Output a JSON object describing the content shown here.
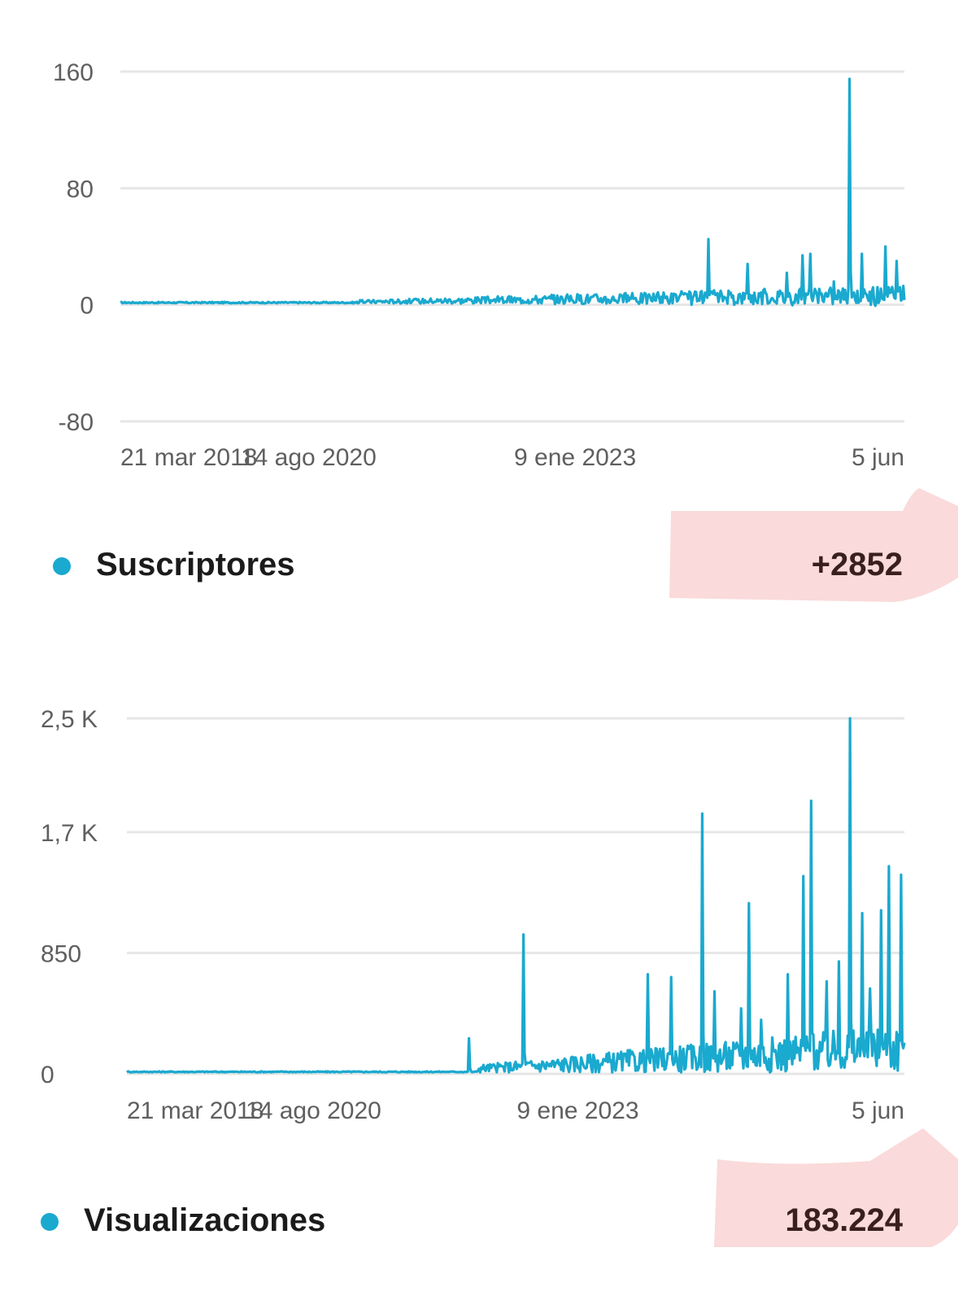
{
  "colors": {
    "series": "#1aa9cf",
    "highlight": "#f9d6d6",
    "grid": "#e6e6e6"
  },
  "charts": [
    {
      "legend": {
        "label": "Suscriptores",
        "value": "+2852",
        "dot_icon": "legend-dot-icon"
      }
    },
    {
      "legend": {
        "label": "Visualizaciones",
        "value": "183.224",
        "dot_icon": "legend-dot-icon"
      }
    }
  ],
  "chart_data": [
    {
      "type": "line",
      "title": "",
      "series": [
        {
          "name": "Suscriptores"
        }
      ],
      "ylim": [
        -80,
        160
      ],
      "yticks": [
        160,
        80,
        0,
        -80
      ],
      "ytick_labels": [
        "160",
        "80",
        "0",
        "-80"
      ],
      "x_range": [
        0,
        100
      ],
      "xtick_positions": [
        0,
        24,
        58,
        100
      ],
      "xtick_labels": [
        "21 mar 2018",
        "14 ago 2020",
        "9 ene 2023",
        "5 jun"
      ],
      "baseline": 1,
      "noise": {
        "start": 30,
        "growth": 7
      },
      "spikes": [
        [
          75,
          45
        ],
        [
          80,
          28
        ],
        [
          82,
          10
        ],
        [
          85,
          22
        ],
        [
          87,
          34
        ],
        [
          88,
          35
        ],
        [
          91,
          16
        ],
        [
          93,
          155
        ],
        [
          94.5,
          35
        ],
        [
          96,
          12
        ],
        [
          97.5,
          40
        ],
        [
          99,
          30
        ]
      ]
    },
    {
      "type": "line",
      "title": "",
      "series": [
        {
          "name": "Visualizaciones"
        }
      ],
      "ylim": [
        0,
        2500
      ],
      "yticks": [
        2500,
        1700,
        850,
        0
      ],
      "ytick_labels": [
        "2,5 K",
        "1,7 K",
        "850",
        "0"
      ],
      "x_range": [
        0,
        100
      ],
      "xtick_positions": [
        0,
        24,
        58,
        100
      ],
      "xtick_labels": [
        "21 mar 2018",
        "14 ago 2020",
        "9 ene 2023",
        "5 jun"
      ],
      "baseline": 10,
      "noise": {
        "start": 45,
        "growth": 180
      },
      "spikes": [
        [
          44,
          250
        ],
        [
          51,
          980
        ],
        [
          67,
          700
        ],
        [
          70,
          680
        ],
        [
          74,
          1830
        ],
        [
          75.5,
          580
        ],
        [
          79,
          460
        ],
        [
          80,
          1200
        ],
        [
          81.5,
          380
        ],
        [
          85,
          700
        ],
        [
          87,
          1390
        ],
        [
          88,
          1920
        ],
        [
          90,
          650
        ],
        [
          91.5,
          790
        ],
        [
          93,
          2500
        ],
        [
          94.5,
          1130
        ],
        [
          95.5,
          600
        ],
        [
          97,
          1150
        ],
        [
          98,
          1460
        ],
        [
          99.5,
          1400
        ]
      ]
    }
  ]
}
